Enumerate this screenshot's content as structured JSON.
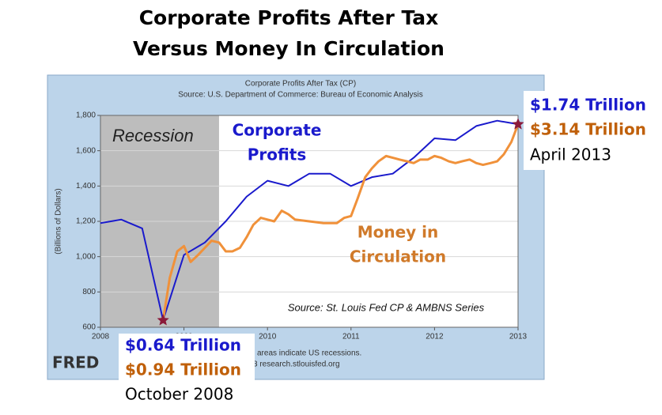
{
  "chart_data": {
    "type": "line",
    "title": [
      "Corporate Profits After Tax",
      "Versus Money In Circulation"
    ],
    "fred_title": "Corporate Profits After Tax (CP)",
    "fred_source": "Source: U.S. Department of Commerce: Bureau of Economic Analysis",
    "y_label": "(Billions of Dollars)",
    "recession_label": "Recession",
    "recession": [
      2007.92,
      2009.42
    ],
    "recession_color": "#bdbdbd",
    "source_note": "Source: St. Louis Fed CP & AMBNS Series",
    "fred_logo": "FRED",
    "fred_notes": [
      "areas indicate US recessions.",
      "3 research.stlouisfed.org"
    ],
    "xlim": [
      2008,
      2013
    ],
    "xticks": [
      2008,
      2009,
      2010,
      2011,
      2012,
      2013
    ],
    "ylim": [
      600,
      1800
    ],
    "yticks": [
      600,
      800,
      {
        "value": 1000,
        "label": "1,000"
      },
      {
        "value": 1200,
        "label": "1,200"
      },
      {
        "value": 1400,
        "label": "1,400"
      },
      {
        "value": 1600,
        "label": "1,600"
      },
      {
        "value": 1800,
        "label": "1,800"
      }
    ],
    "grid": true,
    "series": [
      {
        "name": "Corporate Profits",
        "label_lines": [
          "Corporate",
          "Profits"
        ],
        "color": "#1a1acc",
        "width": 2,
        "x": [
          2008.0,
          2008.25,
          2008.5,
          2008.75,
          2009.0,
          2009.25,
          2009.5,
          2009.75,
          2010.0,
          2010.25,
          2010.5,
          2010.75,
          2011.0,
          2011.25,
          2011.5,
          2011.75,
          2012.0,
          2012.25,
          2012.5,
          2012.75,
          2013.0
        ],
        "values": [
          1190,
          1210,
          1160,
          640,
          1010,
          1080,
          1200,
          1340,
          1430,
          1400,
          1470,
          1470,
          1400,
          1450,
          1470,
          1560,
          1670,
          1660,
          1740,
          1770,
          1750
        ]
      },
      {
        "name": "Money in Circulation",
        "label_lines": [
          "Money in",
          "Circulation"
        ],
        "color": "#f0913a",
        "width": 3,
        "x": [
          2008.75,
          2008.83,
          2008.92,
          2009.0,
          2009.08,
          2009.17,
          2009.25,
          2009.33,
          2009.42,
          2009.5,
          2009.58,
          2009.67,
          2009.75,
          2009.83,
          2009.92,
          2010.0,
          2010.08,
          2010.17,
          2010.25,
          2010.33,
          2010.5,
          2010.67,
          2010.83,
          2010.92,
          2011.0,
          2011.08,
          2011.17,
          2011.25,
          2011.33,
          2011.42,
          2011.5,
          2011.58,
          2011.67,
          2011.75,
          2011.83,
          2011.92,
          2012.0,
          2012.08,
          2012.17,
          2012.25,
          2012.33,
          2012.42,
          2012.5,
          2012.58,
          2012.67,
          2012.75,
          2012.83,
          2012.92,
          2013.0
        ],
        "values": [
          640,
          880,
          1030,
          1060,
          970,
          1010,
          1050,
          1090,
          1080,
          1030,
          1030,
          1050,
          1110,
          1180,
          1220,
          1210,
          1200,
          1260,
          1240,
          1210,
          1200,
          1190,
          1190,
          1220,
          1230,
          1330,
          1450,
          1500,
          1540,
          1570,
          1560,
          1550,
          1540,
          1530,
          1550,
          1550,
          1570,
          1560,
          1540,
          1530,
          1540,
          1550,
          1530,
          1520,
          1530,
          1540,
          1580,
          1650,
          1750
        ]
      }
    ],
    "callouts": [
      {
        "lines": [
          "$0.64 Trillion",
          "$0.94 Trillion",
          "October 2008"
        ]
      },
      {
        "lines": [
          "$1.74 Trillion",
          "$3.14 Trillion",
          "April 2013"
        ]
      }
    ],
    "star_color": "#8b1a3a"
  }
}
